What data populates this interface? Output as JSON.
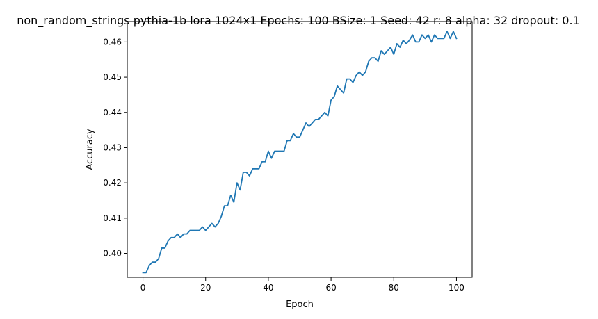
{
  "chart_data": {
    "type": "line",
    "title": "non_random_strings pythia-1b lora 1024x1 Epochs: 100 BSize: 1 Seed: 42 r: 8 alpha: 32 dropout: 0.1",
    "xlabel": "Epoch",
    "ylabel": "Accuracy",
    "xlim": [
      -5,
      105
    ],
    "ylim": [
      0.3932,
      0.4658
    ],
    "xticks": [
      0,
      20,
      40,
      60,
      80,
      100
    ],
    "yticks": [
      0.4,
      0.41,
      0.42,
      0.43,
      0.44,
      0.45,
      0.46
    ],
    "ytick_labels": [
      "0.40",
      "0.41",
      "0.42",
      "0.43",
      "0.44",
      "0.45",
      "0.46"
    ],
    "grid": false,
    "legend": "none",
    "line_color": "#1f77b4",
    "series": [
      {
        "x": [
          0,
          1,
          2,
          3,
          4,
          5,
          6,
          7,
          8,
          9,
          10,
          11,
          12,
          13,
          14,
          15,
          16,
          17,
          18,
          19,
          20,
          21,
          22,
          23,
          24,
          25,
          26,
          27,
          28,
          29,
          30,
          31,
          32,
          33,
          34,
          35,
          36,
          37,
          38,
          39,
          40,
          41,
          42,
          43,
          44,
          45,
          46,
          47,
          48,
          49,
          50,
          51,
          52,
          53,
          54,
          55,
          56,
          57,
          58,
          59,
          60,
          61,
          62,
          63,
          64,
          65,
          66,
          67,
          68,
          69,
          70,
          71,
          72,
          73,
          74,
          75,
          76,
          77,
          78,
          79,
          80,
          81,
          82,
          83,
          84,
          85,
          86,
          87,
          88,
          89,
          90,
          91,
          92,
          93,
          94,
          95,
          96,
          97,
          98,
          99,
          100
        ],
        "values": [
          0.3945,
          0.3945,
          0.3965,
          0.3975,
          0.3975,
          0.3985,
          0.4015,
          0.4015,
          0.4035,
          0.4045,
          0.4045,
          0.4055,
          0.4045,
          0.4055,
          0.4055,
          0.4065,
          0.4065,
          0.4065,
          0.4065,
          0.4075,
          0.4065,
          0.4075,
          0.4085,
          0.4075,
          0.4085,
          0.4105,
          0.4135,
          0.4135,
          0.4165,
          0.4145,
          0.42,
          0.418,
          0.423,
          0.423,
          0.422,
          0.424,
          0.424,
          0.424,
          0.426,
          0.426,
          0.429,
          0.427,
          0.429,
          0.429,
          0.429,
          0.429,
          0.432,
          0.432,
          0.434,
          0.433,
          0.433,
          0.435,
          0.437,
          0.436,
          0.437,
          0.438,
          0.438,
          0.439,
          0.44,
          0.439,
          0.4435,
          0.4445,
          0.4475,
          0.4465,
          0.4455,
          0.4495,
          0.4495,
          0.4485,
          0.4505,
          0.4515,
          0.4505,
          0.4515,
          0.4545,
          0.4555,
          0.4555,
          0.4545,
          0.4575,
          0.4565,
          0.4575,
          0.4585,
          0.4565,
          0.4595,
          0.4585,
          0.4605,
          0.4595,
          0.4605,
          0.462,
          0.46,
          0.46,
          0.462,
          0.461,
          0.462,
          0.46,
          0.462,
          0.461,
          0.461,
          0.461,
          0.463,
          0.461,
          0.463,
          0.461
        ]
      }
    ]
  }
}
